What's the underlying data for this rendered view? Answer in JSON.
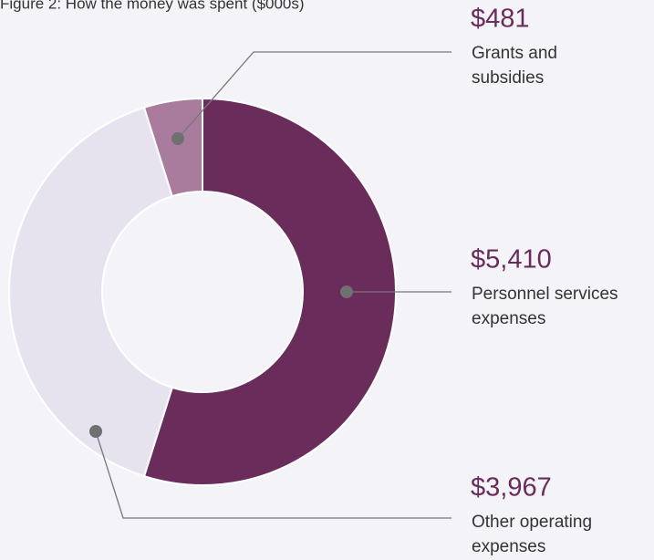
{
  "chart_data": {
    "type": "donut",
    "title": "Figure 2: How the money was spent ($000s)",
    "categories": [
      [
        "Personnel services",
        "expenses"
      ],
      [
        "Other operating",
        "expenses"
      ],
      [
        "Grants and",
        "subsidies"
      ]
    ],
    "values": [
      5410,
      3967,
      481
    ],
    "value_labels": [
      "$5,410",
      "$3,967",
      "$481"
    ],
    "colors": [
      "#6a2c5a",
      "#e6e3ef",
      "#a97c9d"
    ]
  }
}
